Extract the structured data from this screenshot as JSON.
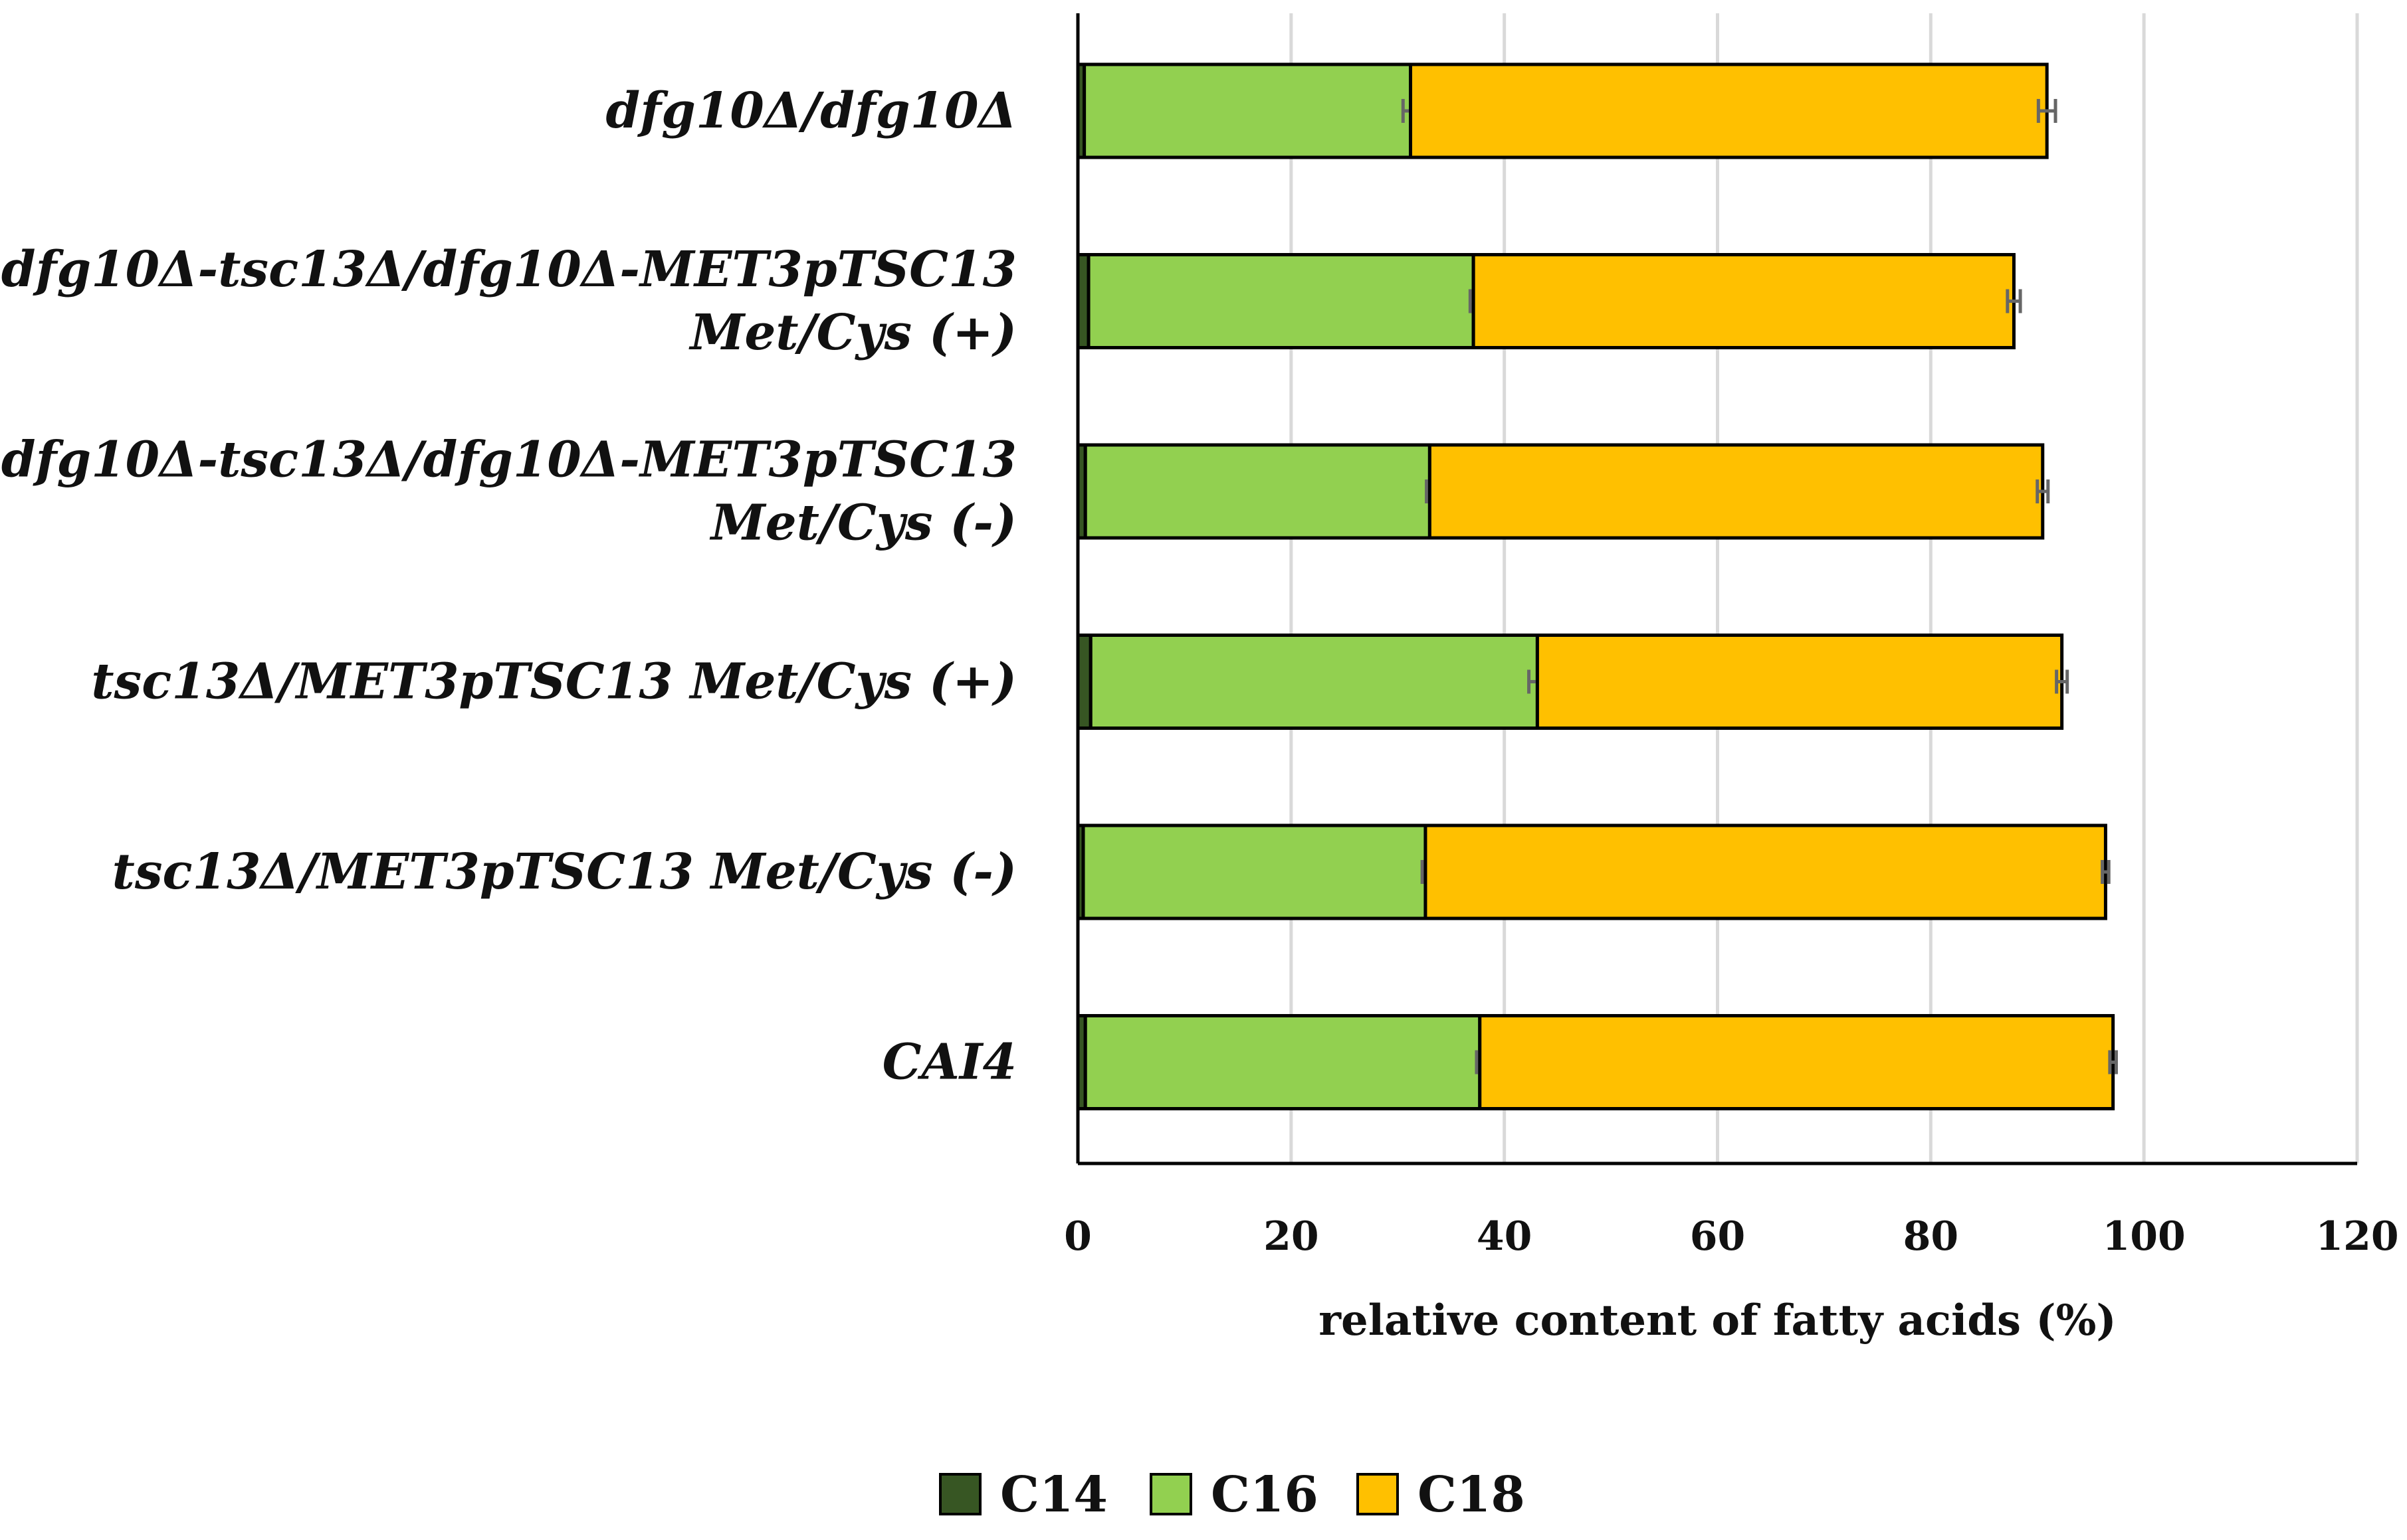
{
  "chart_data": {
    "type": "bar",
    "orientation": "horizontal",
    "stacked": true,
    "xlabel": "relative content of fatty acids (%)",
    "xlim": [
      0,
      120
    ],
    "xticks": [
      0,
      20,
      40,
      60,
      80,
      100,
      120
    ],
    "grid": true,
    "legend_position": "bottom",
    "categories": [
      {
        "lines": [
          "dfg10Δ/dfg10Δ"
        ]
      },
      {
        "lines": [
          "dfg10Δ-tsc13Δ/dfg10Δ-MET3pTSC13",
          "Met/Cys (+)"
        ]
      },
      {
        "lines": [
          "dfg10Δ-tsc13Δ/dfg10Δ-MET3pTSC13",
          "Met/Cys (-)"
        ]
      },
      {
        "lines": [
          "tsc13Δ/MET3pTSC13  Met/Cys (+)"
        ]
      },
      {
        "lines": [
          "tsc13Δ/MET3pTSC13  Met/Cys (-)"
        ]
      },
      {
        "lines": [
          "CAI4"
        ]
      }
    ],
    "series": [
      {
        "name": "C14",
        "color": "#375623",
        "values": [
          0.6,
          1.0,
          0.7,
          1.2,
          0.5,
          0.7
        ],
        "errors": [
          0,
          0,
          0,
          0,
          0,
          0
        ]
      },
      {
        "name": "C16",
        "color": "#92d050",
        "values": [
          30.6,
          36.1,
          32.3,
          41.9,
          32.1,
          37.0
        ],
        "errors": [
          0.7,
          0.3,
          0.3,
          0.8,
          0.3,
          0.3
        ]
      },
      {
        "name": "C18",
        "color": "#ffc000",
        "values": [
          59.7,
          50.7,
          57.5,
          49.2,
          63.8,
          59.4
        ],
        "errors": [
          0.8,
          0.6,
          0.5,
          0.5,
          0.3,
          0.3
        ]
      }
    ]
  }
}
